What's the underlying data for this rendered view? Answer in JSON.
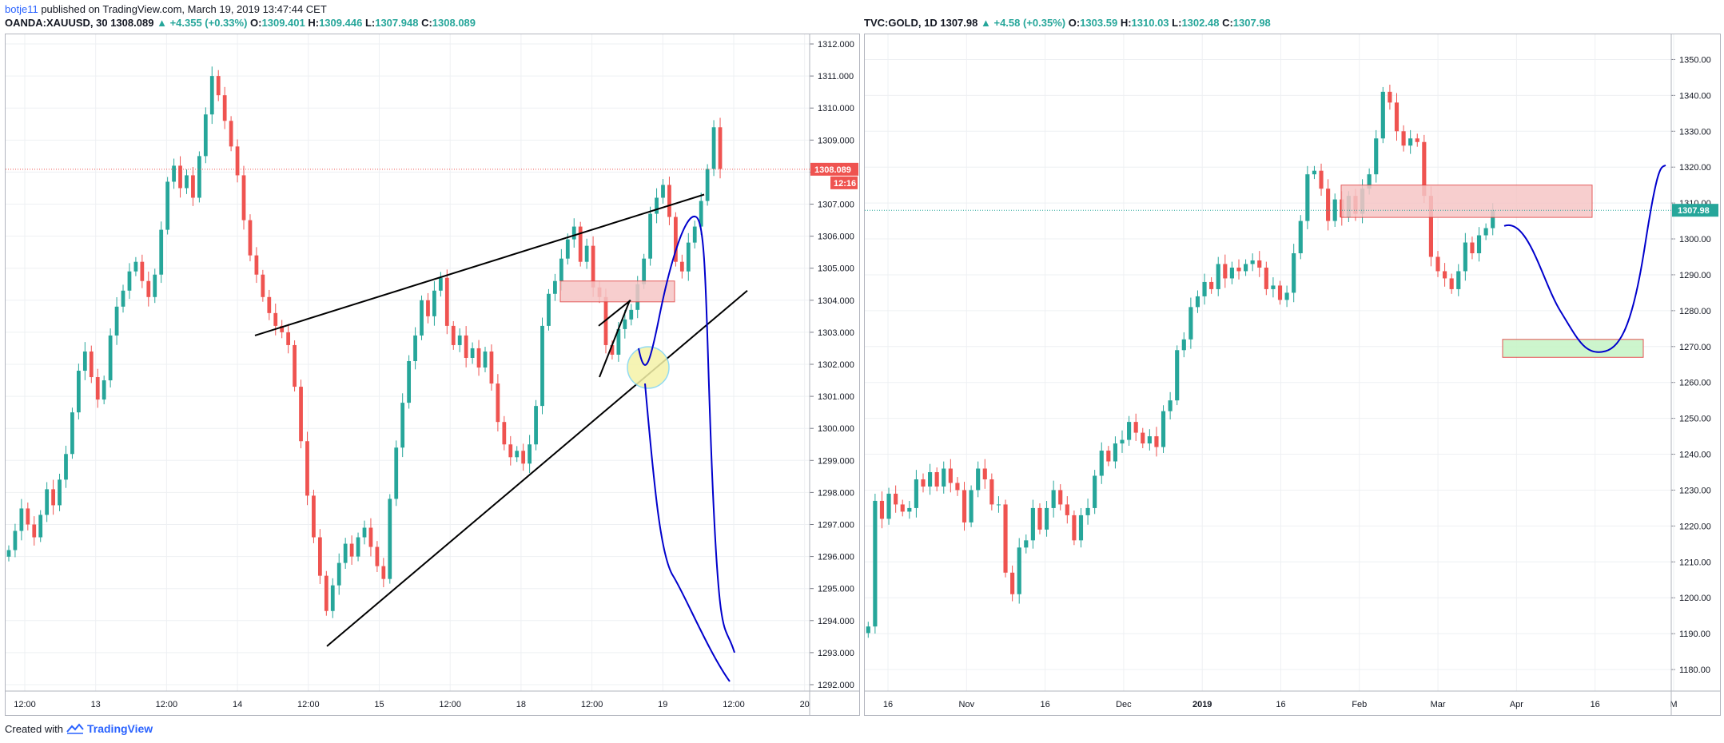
{
  "header": {
    "user": "botje11",
    "published": "published on TradingView.com, March 19, 2019 13:47:44 CET"
  },
  "footer": {
    "created_with": "Created with",
    "brand": "TradingView"
  },
  "colors": {
    "up": "#26a69a",
    "down": "#ef5350",
    "grid": "#eef0f3",
    "blue_path": "#0000cc",
    "zone_red": "#f6c6c6",
    "zone_green": "#c8f5c8",
    "price_line": "#ef5350",
    "price_line_right": "#26a69a"
  },
  "chart_data": [
    {
      "type": "candlestick",
      "symbol": "OANDA:XAUUSD, 30",
      "last": "1308.089",
      "change": "+4.355 (+0.33%)",
      "ohlc": {
        "O": "1309.401",
        "H": "1309.446",
        "L": "1307.948",
        "C": "1308.089"
      },
      "ylim": [
        1291.8,
        1312.3
      ],
      "yticks": [
        "1312.000",
        "1311.000",
        "1310.000",
        "1309.000",
        "1308.000",
        "1307.000",
        "1306.000",
        "1305.000",
        "1304.000",
        "1303.000",
        "1302.000",
        "1301.000",
        "1300.000",
        "1299.000",
        "1298.000",
        "1297.000",
        "1296.000",
        "1295.000",
        "1294.000",
        "1293.000",
        "1292.000"
      ],
      "xticks": [
        "12:00",
        "13",
        "12:00",
        "14",
        "12:00",
        "15",
        "12:00",
        "18",
        "12:00",
        "19",
        "12:00",
        "20"
      ],
      "price_label": "1308.089",
      "countdown_label": "12:16",
      "closes": [
        1296.2,
        1296.8,
        1297.5,
        1297.0,
        1296.6,
        1297.3,
        1298.1,
        1297.6,
        1298.4,
        1299.2,
        1300.5,
        1301.8,
        1302.4,
        1301.6,
        1300.9,
        1301.5,
        1302.9,
        1303.8,
        1304.3,
        1304.9,
        1305.2,
        1304.6,
        1304.1,
        1304.8,
        1306.2,
        1307.7,
        1308.2,
        1307.5,
        1307.9,
        1307.2,
        1308.5,
        1309.8,
        1311.0,
        1310.4,
        1309.6,
        1308.8,
        1307.9,
        1306.5,
        1305.4,
        1304.8,
        1304.1,
        1303.6,
        1303.2,
        1303.0,
        1302.6,
        1301.3,
        1299.6,
        1297.9,
        1296.6,
        1295.4,
        1294.3,
        1295.1,
        1295.8,
        1296.4,
        1296.0,
        1296.6,
        1296.9,
        1296.3,
        1295.7,
        1295.3,
        1297.8,
        1299.4,
        1300.8,
        1302.1,
        1302.9,
        1304.0,
        1303.5,
        1304.3,
        1304.7,
        1303.2,
        1302.6,
        1302.9,
        1302.2,
        1302.5,
        1301.9,
        1302.4,
        1301.4,
        1300.2,
        1299.5,
        1299.1,
        1299.3,
        1298.9,
        1299.5,
        1300.7,
        1303.2,
        1304.2,
        1304.6,
        1305.3,
        1305.9,
        1306.3,
        1305.2,
        1305.7,
        1304.4,
        1304.1,
        1302.6,
        1302.3,
        1303.1,
        1303.4,
        1303.7,
        1304.5,
        1305.3,
        1306.7,
        1307.2,
        1307.6,
        1306.6,
        1305.2,
        1304.9,
        1305.8,
        1306.3,
        1307.1,
        1308.1,
        1309.4,
        1308.1
      ]
    },
    {
      "type": "candlestick",
      "symbol": "TVC:GOLD, 1D",
      "last": "1307.98",
      "change": "+4.58 (+0.35%)",
      "ohlc": {
        "O": "1303.59",
        "H": "1310.03",
        "L": "1302.48",
        "C": "1307.98"
      },
      "ylim": [
        1174,
        1357
      ],
      "yticks": [
        "1350.00",
        "1340.00",
        "1330.00",
        "1320.00",
        "1310.00",
        "1300.00",
        "1290.00",
        "1280.00",
        "1270.00",
        "1260.00",
        "1250.00",
        "1240.00",
        "1230.00",
        "1220.00",
        "1210.00",
        "1200.00",
        "1190.00",
        "1180.00"
      ],
      "xticks": [
        "16",
        "Nov",
        "16",
        "Dec",
        "2019",
        "16",
        "Feb",
        "Mar",
        "Apr",
        "16",
        "M"
      ],
      "price_label": "1307.98",
      "closes": [
        1192,
        1227,
        1222,
        1229,
        1226,
        1224,
        1225,
        1233,
        1231,
        1235,
        1231,
        1236,
        1232,
        1230,
        1221,
        1230,
        1236,
        1233,
        1226,
        1226,
        1207,
        1201,
        1214,
        1216,
        1225,
        1219,
        1225,
        1230,
        1226,
        1223,
        1216,
        1223,
        1225,
        1234,
        1241,
        1238,
        1243,
        1244,
        1249,
        1246,
        1243,
        1245,
        1242,
        1252,
        1255,
        1269,
        1272,
        1281,
        1284,
        1288,
        1286,
        1293,
        1289,
        1292,
        1291,
        1293,
        1294,
        1292,
        1286,
        1287,
        1283,
        1285,
        1296,
        1305,
        1318,
        1319,
        1314,
        1305,
        1311,
        1306,
        1312,
        1307,
        1314,
        1318,
        1328,
        1341,
        1338,
        1330,
        1326,
        1328,
        1327,
        1312,
        1295,
        1291,
        1289,
        1286,
        1291,
        1299,
        1296,
        1301,
        1303,
        1308
      ]
    }
  ]
}
